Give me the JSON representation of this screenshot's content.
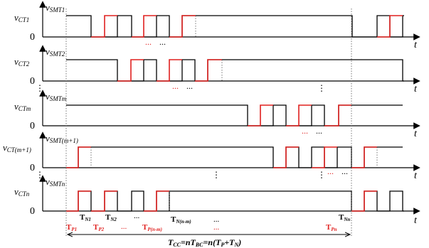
{
  "colors": {
    "black_wave": "#000000",
    "red_wave": "#e0201f",
    "axis": "#000000",
    "guide": "#555555"
  },
  "axis_symbol": "t",
  "zero_label": "0",
  "ellipsis": "...",
  "vdots": "⋮",
  "panels": [
    {
      "id": "smt1",
      "ylabel_main": "v",
      "ylabel_sub": "SMT1",
      "level_main": "v",
      "level_sub": "CT1",
      "dots_right": false
    },
    {
      "id": "smt2",
      "ylabel_main": "v",
      "ylabel_sub": "SMT2",
      "level_main": "v",
      "level_sub": "CT2",
      "dots_right": true
    },
    {
      "id": "smtm",
      "ylabel_main": "v",
      "ylabel_sub": "SMTm",
      "level_main": "v",
      "level_sub": "CTm",
      "dots_right": false
    },
    {
      "id": "smtm1",
      "ylabel_main": "v",
      "ylabel_sub": "SMT(m+1)",
      "level_main": "v",
      "level_sub": "CT(m+1)",
      "dots_right": true
    },
    {
      "id": "smtn",
      "ylabel_main": "v",
      "ylabel_sub": "SMTn",
      "level_main": "v",
      "level_sub": "CTn",
      "dots_right": false
    }
  ],
  "time_labels": {
    "tn1_main": "T",
    "tn1_sub": "N1",
    "tn2_main": "T",
    "tn2_sub": "N2",
    "tnnm_main": "T",
    "tnnm_sub": "N(n-m)",
    "tnn_main": "T",
    "tnn_sub": "Nn",
    "tp1_main": "T",
    "tp1_sub": "P1",
    "tp2_main": "T",
    "tp2_sub": "P2",
    "tpnm_main": "T",
    "tpnm_sub": "P(n-m)",
    "tpn_main": "T",
    "tpn_sub": "Pn"
  },
  "formula": {
    "p1": "T",
    "p1_sub": "CC",
    "p2": "=",
    "p3": "n",
    "p4": "T",
    "p4_sub": "BC",
    "p5": "=",
    "p6": "n",
    "p7": "(",
    "p8": "T",
    "p8_sub": "P",
    "p9": "+",
    "p10": "T",
    "p10_sub": "N",
    "p11": ")"
  }
}
